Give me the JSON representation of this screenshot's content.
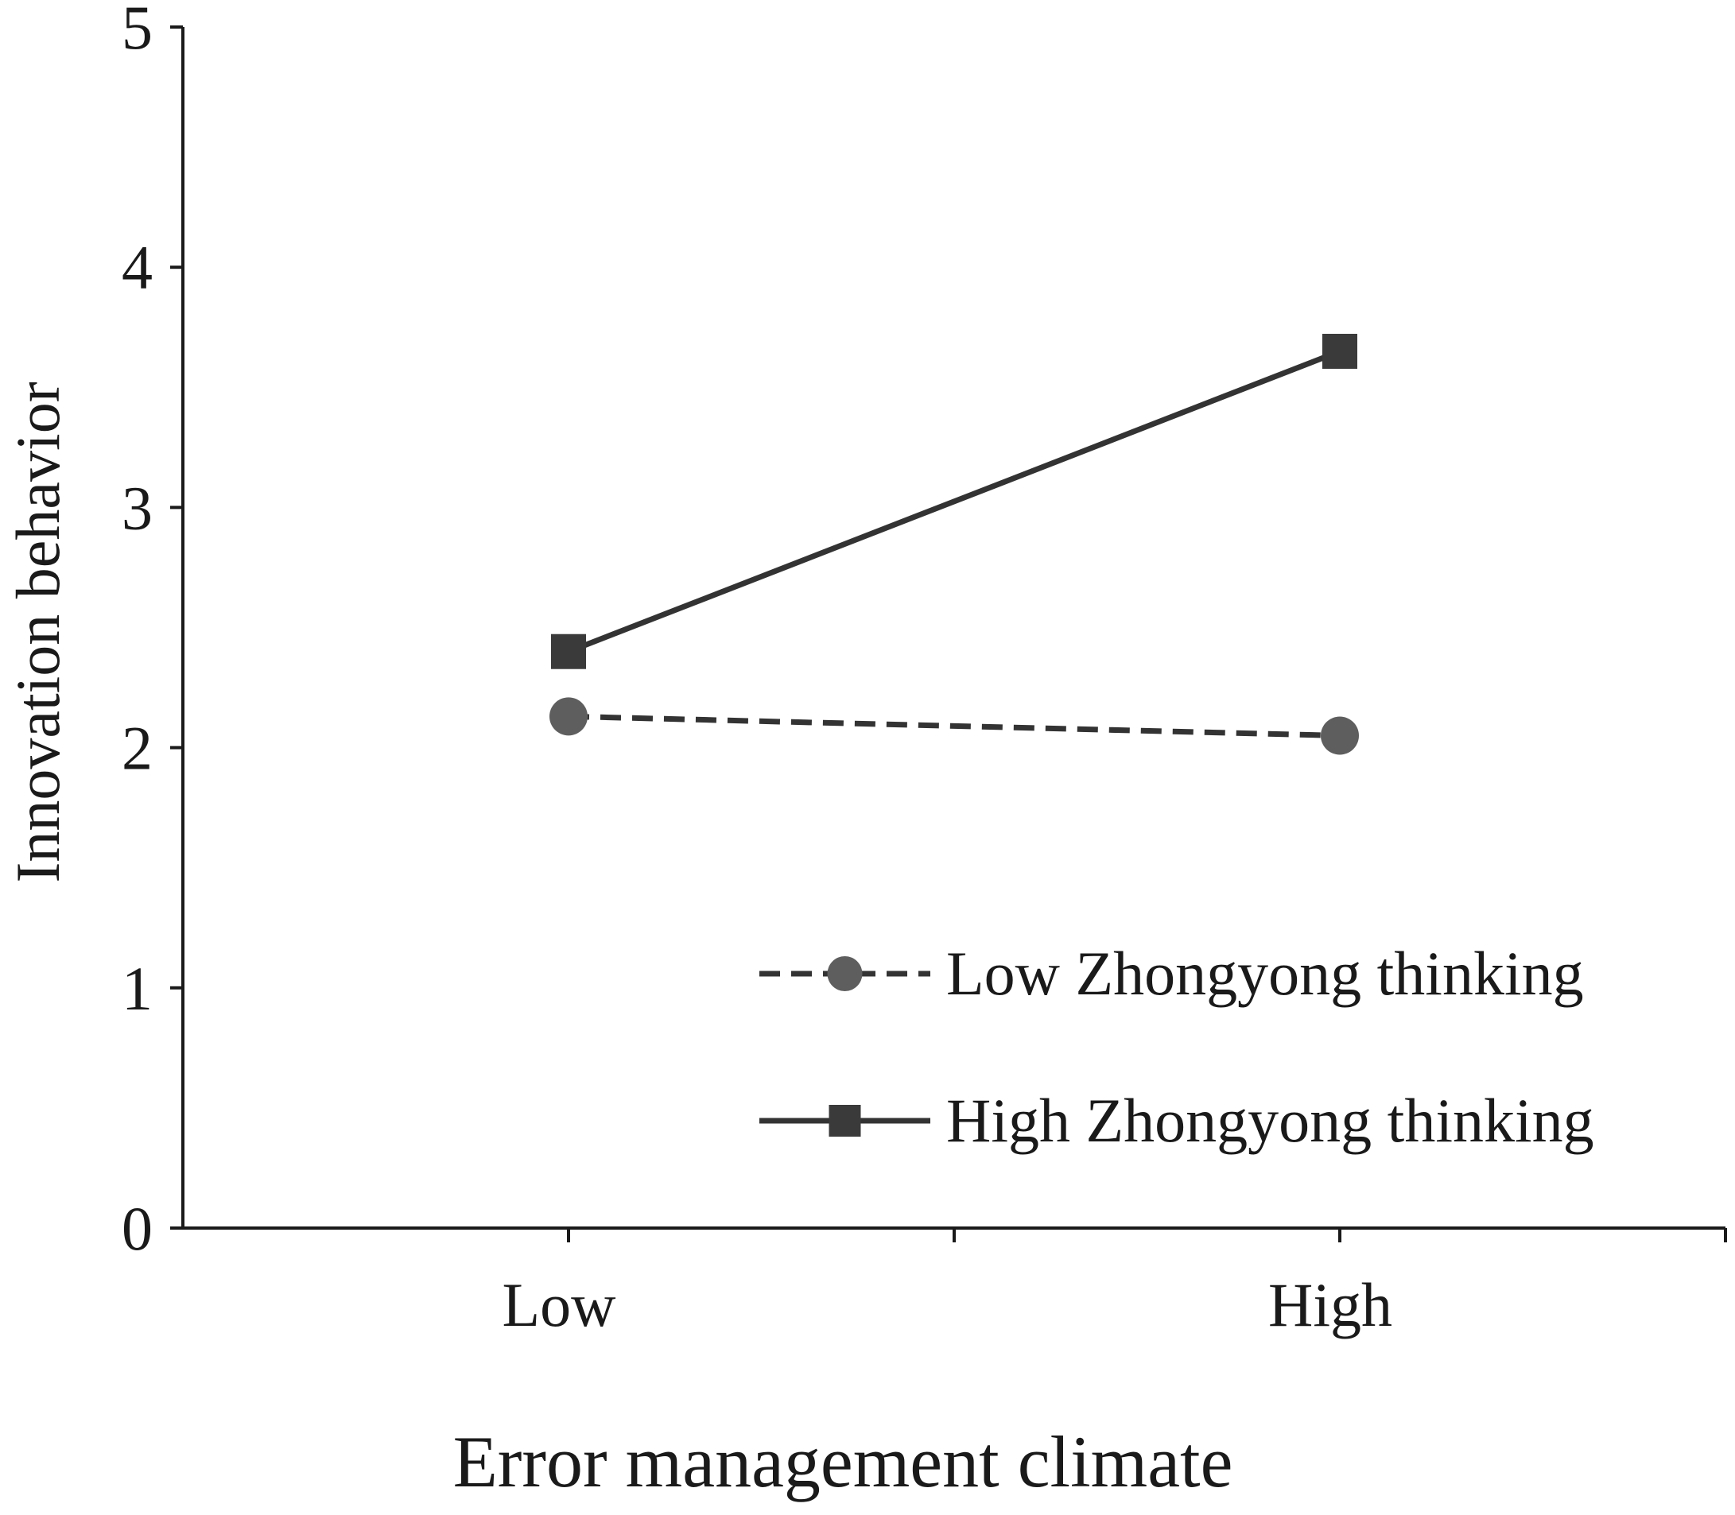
{
  "chart_data": {
    "type": "line",
    "categories": [
      "Low",
      "High"
    ],
    "series": [
      {
        "name": "Low Zhongyong thinking",
        "values": [
          2.13,
          2.05
        ],
        "line_style": "dashed",
        "marker": "circle",
        "color": "#333333",
        "marker_color": "#5e5e5e"
      },
      {
        "name": "High Zhongyong thinking",
        "values": [
          2.4,
          3.65
        ],
        "line_style": "solid",
        "marker": "square",
        "color": "#333333",
        "marker_color": "#3a3a3a"
      }
    ],
    "xlabel": "Error management climate",
    "ylabel": "Innovation behavior",
    "ylim": [
      0,
      5
    ],
    "yticks": [
      "0",
      "1",
      "2",
      "3",
      "4",
      "5"
    ],
    "grid": false,
    "legend_position": "bottom-right"
  }
}
